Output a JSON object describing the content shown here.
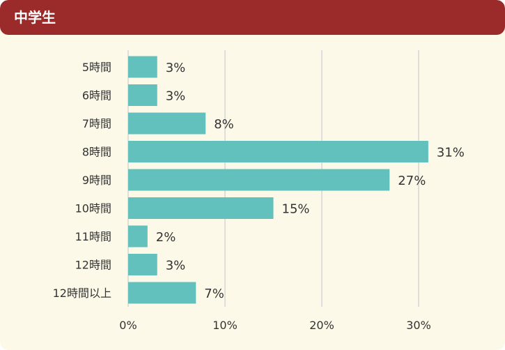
{
  "header": {
    "title": "中学生",
    "color": "#9b2a2a"
  },
  "colors": {
    "bar": "#62c1bc",
    "grid": "#d6d6d6",
    "background": "#fdf9e9"
  },
  "chart_data": {
    "type": "bar",
    "orientation": "horizontal",
    "title": "中学生",
    "categories": [
      "5時間",
      "6時間",
      "7時間",
      "8時間",
      "9時間",
      "10時間",
      "11時間",
      "12時間",
      "12時間以上"
    ],
    "values": [
      3,
      3,
      8,
      31,
      27,
      15,
      2,
      3,
      7
    ],
    "value_labels": [
      "3%",
      "3%",
      "8%",
      "31%",
      "27%",
      "15%",
      "2%",
      "3%",
      "7%"
    ],
    "x_ticks": [
      "0%",
      "10%",
      "20%",
      "30%"
    ],
    "xlim": [
      0,
      30
    ],
    "grid": true,
    "legend": "none",
    "unit": "%"
  }
}
